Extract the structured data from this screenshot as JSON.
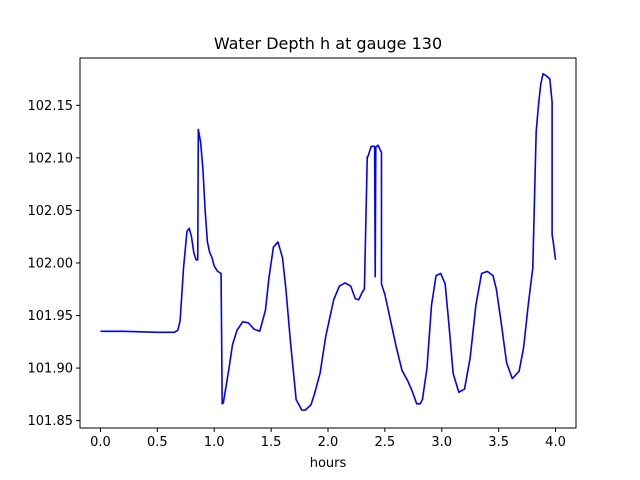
{
  "chart_data": {
    "type": "line",
    "title": "Water Depth h at gauge 130",
    "xlabel": "hours",
    "ylabel": "",
    "xlim": [
      -0.18,
      4.18
    ],
    "ylim": [
      101.843,
      102.195
    ],
    "xticks": [
      0.0,
      0.5,
      1.0,
      1.5,
      2.0,
      2.5,
      3.0,
      3.5,
      4.0
    ],
    "xtick_labels": [
      "0.0",
      "0.5",
      "1.0",
      "1.5",
      "2.0",
      "2.5",
      "3.0",
      "3.5",
      "4.0"
    ],
    "yticks": [
      101.85,
      101.9,
      101.95,
      102.0,
      102.05,
      102.1,
      102.15
    ],
    "ytick_labels": [
      "101.85",
      "101.90",
      "101.95",
      "102.00",
      "102.05",
      "102.10",
      "102.15"
    ],
    "grid": false,
    "series": [
      {
        "color": "#0000ff",
        "x": [
          0.0,
          0.2,
          0.5,
          0.65,
          0.68,
          0.7,
          0.73,
          0.76,
          0.78,
          0.8,
          0.82,
          0.84,
          0.855,
          0.86,
          0.88,
          0.9,
          0.92,
          0.94,
          0.96,
          0.98,
          1.0,
          1.03,
          1.06,
          1.07,
          1.08,
          1.1,
          1.13,
          1.16,
          1.2,
          1.25,
          1.3,
          1.35,
          1.4,
          1.45,
          1.48,
          1.52,
          1.56,
          1.6,
          1.63,
          1.67,
          1.72,
          1.77,
          1.8,
          1.85,
          1.88,
          1.93,
          1.98,
          2.05,
          2.1,
          2.15,
          2.2,
          2.24,
          2.27,
          2.3,
          2.32,
          2.345,
          2.35,
          2.38,
          2.41,
          2.415,
          2.42,
          2.44,
          2.47,
          2.47,
          2.5,
          2.55,
          2.6,
          2.65,
          2.7,
          2.74,
          2.78,
          2.81,
          2.83,
          2.87,
          2.91,
          2.95,
          2.99,
          3.03,
          3.06,
          3.1,
          3.15,
          3.2,
          3.25,
          3.3,
          3.35,
          3.4,
          3.45,
          3.48,
          3.52,
          3.57,
          3.62,
          3.68,
          3.72,
          3.76,
          3.8,
          3.83,
          3.83,
          3.85,
          3.87,
          3.89,
          3.92,
          3.95,
          3.97,
          3.97,
          3.98,
          4.0
        ],
        "y": [
          101.935,
          101.935,
          101.934,
          101.934,
          101.936,
          101.945,
          101.995,
          102.03,
          102.033,
          102.025,
          102.01,
          102.003,
          102.003,
          102.127,
          102.115,
          102.09,
          102.05,
          102.02,
          102.01,
          102.005,
          101.997,
          101.992,
          101.99,
          101.866,
          101.867,
          101.88,
          101.9,
          101.922,
          101.936,
          101.944,
          101.943,
          101.937,
          101.935,
          101.955,
          101.985,
          102.015,
          102.02,
          102.005,
          101.975,
          101.925,
          101.87,
          101.86,
          101.86,
          101.865,
          101.875,
          101.895,
          101.93,
          101.965,
          101.978,
          101.981,
          101.978,
          101.966,
          101.965,
          101.972,
          101.975,
          102.101,
          102.101,
          102.111,
          102.111,
          101.987,
          102.11,
          102.112,
          102.105,
          101.98,
          101.97,
          101.945,
          101.92,
          101.898,
          101.888,
          101.878,
          101.866,
          101.866,
          101.87,
          101.9,
          101.96,
          101.988,
          101.99,
          101.98,
          101.945,
          101.895,
          101.877,
          101.88,
          101.91,
          101.96,
          101.99,
          101.992,
          101.988,
          101.975,
          101.945,
          101.905,
          101.89,
          101.897,
          101.92,
          101.96,
          101.995,
          102.125,
          102.125,
          102.15,
          102.17,
          102.18,
          102.178,
          102.175,
          102.153,
          102.027,
          102.02,
          102.003
        ]
      }
    ]
  }
}
